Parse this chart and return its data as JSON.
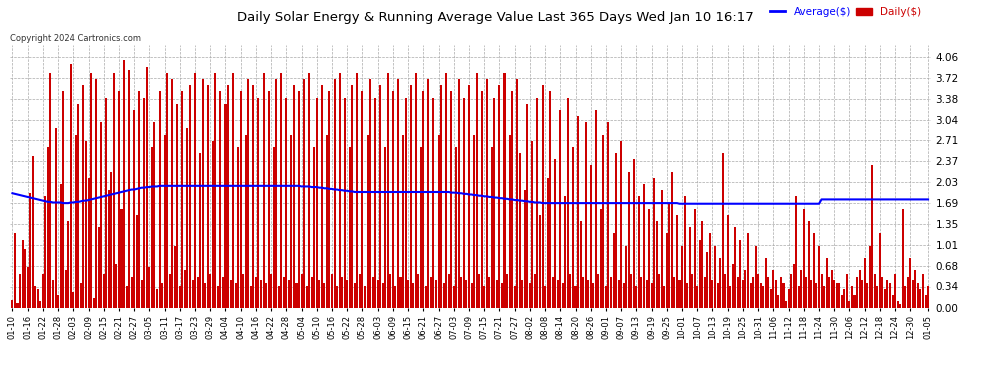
{
  "title": "Daily Solar Energy & Running Average Value Last 365 Days Wed Jan 10 16:17",
  "copyright": "Copyright 2024 Cartronics.com",
  "legend_avg": "Average($)",
  "legend_daily": "Daily($)",
  "bar_color": "#cc0000",
  "avg_line_color": "#0000ff",
  "background_color": "#ffffff",
  "plot_bg_color": "#ffffff",
  "grid_color": "#aaaaaa",
  "yticks": [
    0.0,
    0.34,
    0.68,
    1.01,
    1.35,
    1.69,
    2.03,
    2.37,
    2.71,
    3.04,
    3.38,
    3.72,
    4.06
  ],
  "ylim": [
    0.0,
    4.25
  ],
  "xtick_labels": [
    "01-10",
    "01-16",
    "01-22",
    "01-28",
    "02-03",
    "02-09",
    "02-15",
    "02-21",
    "02-27",
    "03-05",
    "03-11",
    "03-17",
    "03-23",
    "03-29",
    "04-04",
    "04-10",
    "04-16",
    "04-22",
    "04-28",
    "05-04",
    "05-10",
    "05-16",
    "05-22",
    "05-28",
    "06-03",
    "06-09",
    "06-15",
    "06-21",
    "06-27",
    "07-03",
    "07-09",
    "07-15",
    "07-21",
    "07-27",
    "08-02",
    "08-08",
    "08-14",
    "08-20",
    "08-26",
    "09-01",
    "09-07",
    "09-13",
    "09-19",
    "09-25",
    "10-01",
    "10-07",
    "10-13",
    "10-19",
    "10-25",
    "10-31",
    "11-06",
    "11-12",
    "11-18",
    "11-24",
    "11-30",
    "12-06",
    "12-12",
    "12-18",
    "12-24",
    "12-30",
    "01-05"
  ],
  "avg_line": [
    1.85,
    1.84,
    1.83,
    1.82,
    1.81,
    1.8,
    1.79,
    1.78,
    1.77,
    1.76,
    1.75,
    1.74,
    1.73,
    1.72,
    1.71,
    1.71,
    1.7,
    1.7,
    1.7,
    1.7,
    1.69,
    1.69,
    1.69,
    1.7,
    1.7,
    1.71,
    1.71,
    1.72,
    1.73,
    1.73,
    1.74,
    1.75,
    1.76,
    1.77,
    1.78,
    1.79,
    1.8,
    1.81,
    1.82,
    1.83,
    1.84,
    1.85,
    1.86,
    1.87,
    1.88,
    1.89,
    1.9,
    1.91,
    1.91,
    1.92,
    1.93,
    1.94,
    1.94,
    1.95,
    1.95,
    1.96,
    1.96,
    1.96,
    1.97,
    1.97,
    1.97,
    1.97,
    1.97,
    1.97,
    1.97,
    1.97,
    1.97,
    1.97,
    1.97,
    1.97,
    1.97,
    1.97,
    1.97,
    1.97,
    1.97,
    1.97,
    1.97,
    1.97,
    1.97,
    1.97,
    1.97,
    1.97,
    1.97,
    1.97,
    1.97,
    1.97,
    1.97,
    1.97,
    1.97,
    1.97,
    1.97,
    1.97,
    1.97,
    1.97,
    1.97,
    1.97,
    1.97,
    1.97,
    1.97,
    1.97,
    1.97,
    1.97,
    1.97,
    1.97,
    1.97,
    1.97,
    1.97,
    1.97,
    1.97,
    1.97,
    1.97,
    1.97,
    1.97,
    1.97,
    1.96,
    1.96,
    1.96,
    1.96,
    1.95,
    1.95,
    1.95,
    1.94,
    1.94,
    1.93,
    1.93,
    1.92,
    1.92,
    1.91,
    1.91,
    1.9,
    1.9,
    1.89,
    1.89,
    1.88,
    1.88,
    1.87,
    1.87,
    1.87,
    1.87,
    1.87,
    1.87,
    1.87,
    1.87,
    1.87,
    1.87,
    1.87,
    1.87,
    1.87,
    1.87,
    1.87,
    1.87,
    1.87,
    1.87,
    1.87,
    1.87,
    1.87,
    1.87,
    1.87,
    1.87,
    1.87,
    1.87,
    1.87,
    1.87,
    1.87,
    1.87,
    1.87,
    1.87,
    1.87,
    1.87,
    1.87,
    1.87,
    1.87,
    1.87,
    1.86,
    1.86,
    1.86,
    1.85,
    1.85,
    1.84,
    1.84,
    1.83,
    1.83,
    1.82,
    1.82,
    1.81,
    1.81,
    1.8,
    1.8,
    1.79,
    1.79,
    1.78,
    1.78,
    1.77,
    1.77,
    1.76,
    1.76,
    1.75,
    1.75,
    1.74,
    1.74,
    1.73,
    1.73,
    1.72,
    1.72,
    1.71,
    1.71,
    1.7,
    1.7,
    1.7,
    1.69,
    1.69,
    1.69,
    1.69,
    1.69,
    1.69,
    1.69,
    1.69,
    1.69,
    1.69,
    1.69,
    1.69,
    1.69,
    1.69,
    1.69,
    1.69,
    1.69,
    1.69,
    1.69,
    1.69,
    1.69,
    1.69,
    1.69,
    1.69,
    1.69,
    1.69,
    1.69,
    1.69,
    1.69,
    1.69,
    1.69,
    1.69,
    1.69,
    1.69,
    1.69,
    1.69,
    1.69,
    1.69,
    1.69,
    1.69,
    1.69,
    1.69,
    1.69,
    1.69,
    1.69,
    1.69,
    1.69,
    1.69,
    1.69,
    1.69,
    1.69,
    1.69,
    1.69,
    1.69,
    1.68,
    1.68,
    1.68,
    1.68,
    1.68,
    1.68,
    1.68,
    1.68,
    1.68,
    1.68,
    1.68,
    1.68,
    1.68,
    1.68,
    1.68,
    1.68,
    1.68,
    1.68,
    1.68,
    1.68,
    1.68,
    1.68,
    1.68,
    1.68,
    1.68,
    1.68,
    1.68,
    1.68,
    1.68,
    1.68,
    1.68,
    1.68,
    1.68,
    1.68,
    1.68,
    1.68,
    1.68,
    1.68,
    1.68,
    1.68,
    1.68,
    1.68,
    1.68,
    1.68,
    1.68,
    1.68,
    1.68,
    1.68,
    1.68,
    1.68,
    1.68,
    1.68,
    1.68,
    1.68,
    1.68,
    1.68,
    1.75,
    1.75,
    1.75,
    1.75,
    1.75,
    1.75,
    1.75,
    1.75,
    1.75,
    1.75,
    1.75,
    1.75,
    1.75,
    1.75,
    1.75,
    1.75,
    1.75,
    1.75,
    1.75,
    1.75,
    1.75,
    1.75,
    1.75,
    1.75,
    1.75,
    1.75,
    1.75,
    1.75,
    1.75,
    1.75,
    1.75,
    1.75,
    1.75,
    1.75,
    1.75,
    1.75,
    1.75,
    1.75,
    1.75,
    1.75,
    1.75,
    1.75,
    1.75
  ],
  "daily_values": [
    0.12,
    1.2,
    0.08,
    0.55,
    1.1,
    0.95,
    0.65,
    1.85,
    2.45,
    0.35,
    0.3,
    0.1,
    0.55,
    1.8,
    2.6,
    3.8,
    0.45,
    2.9,
    0.2,
    2.0,
    3.5,
    0.6,
    1.4,
    3.95,
    0.25,
    2.8,
    3.3,
    0.4,
    3.6,
    2.7,
    2.1,
    3.8,
    0.15,
    3.7,
    1.3,
    3.0,
    0.55,
    3.4,
    1.9,
    2.2,
    3.8,
    0.7,
    3.5,
    1.6,
    4.0,
    0.35,
    3.85,
    0.5,
    3.2,
    1.5,
    3.5,
    0.45,
    3.4,
    3.9,
    0.65,
    2.6,
    3.0,
    0.3,
    3.5,
    0.4,
    2.8,
    3.8,
    0.55,
    3.7,
    1.0,
    3.3,
    0.35,
    3.5,
    0.6,
    2.9,
    3.6,
    0.45,
    3.8,
    0.5,
    2.5,
    3.7,
    0.4,
    3.6,
    0.55,
    2.7,
    3.8,
    0.35,
    3.5,
    0.5,
    3.3,
    3.6,
    0.45,
    3.8,
    0.4,
    2.6,
    3.5,
    0.55,
    2.8,
    3.7,
    0.35,
    3.6,
    0.5,
    3.4,
    0.45,
    3.8,
    0.4,
    3.5,
    0.55,
    2.6,
    3.7,
    0.35,
    3.8,
    0.5,
    3.4,
    0.45,
    2.8,
    3.6,
    0.4,
    3.5,
    0.55,
    3.7,
    0.35,
    3.8,
    0.5,
    2.6,
    3.4,
    0.45,
    3.6,
    0.4,
    2.8,
    3.5,
    0.55,
    3.7,
    0.35,
    3.8,
    0.5,
    3.4,
    0.45,
    2.6,
    3.6,
    0.4,
    3.8,
    0.55,
    3.5,
    0.35,
    2.8,
    3.7,
    0.5,
    3.4,
    0.45,
    3.6,
    0.4,
    2.6,
    3.8,
    0.55,
    3.5,
    0.35,
    3.7,
    0.5,
    2.8,
    3.4,
    0.45,
    3.6,
    0.4,
    3.8,
    0.55,
    2.6,
    3.5,
    0.35,
    3.7,
    0.5,
    3.4,
    0.45,
    2.8,
    3.6,
    0.4,
    3.8,
    0.55,
    3.5,
    0.35,
    2.6,
    3.7,
    0.5,
    3.4,
    0.45,
    3.6,
    0.4,
    2.8,
    3.8,
    0.55,
    3.5,
    0.35,
    3.7,
    0.5,
    2.6,
    3.4,
    0.45,
    3.6,
    0.4,
    3.8,
    0.55,
    2.8,
    3.5,
    0.35,
    3.7,
    2.5,
    0.45,
    1.9,
    3.3,
    0.4,
    2.7,
    0.55,
    3.4,
    1.5,
    3.6,
    0.35,
    2.1,
    3.5,
    0.5,
    2.4,
    0.45,
    3.2,
    0.4,
    1.8,
    3.4,
    0.55,
    2.6,
    0.35,
    3.1,
    1.4,
    0.5,
    3.0,
    0.45,
    2.3,
    0.4,
    3.2,
    0.55,
    1.6,
    2.8,
    0.35,
    3.0,
    0.5,
    1.2,
    2.5,
    0.45,
    2.7,
    0.4,
    1.0,
    2.2,
    0.55,
    2.4,
    0.35,
    1.8,
    0.5,
    2.0,
    0.45,
    1.6,
    0.4,
    2.1,
    1.4,
    0.55,
    1.9,
    0.35,
    1.2,
    1.7,
    2.2,
    0.5,
    1.5,
    0.45,
    1.0,
    1.8,
    0.4,
    1.3,
    0.55,
    1.6,
    0.35,
    1.1,
    1.4,
    0.5,
    0.9,
    1.2,
    0.45,
    1.0,
    0.4,
    0.8,
    2.5,
    0.55,
    1.5,
    0.35,
    0.7,
    1.3,
    0.5,
    1.1,
    0.45,
    0.6,
    1.2,
    0.4,
    0.5,
    1.0,
    0.55,
    0.4,
    0.35,
    0.8,
    0.5,
    0.3,
    0.6,
    0.45,
    0.2,
    0.5,
    0.4,
    0.1,
    0.3,
    0.55,
    0.7,
    1.8,
    0.35,
    0.6,
    1.6,
    0.5,
    1.4,
    0.45,
    1.2,
    0.4,
    1.0,
    0.55,
    0.35,
    0.8,
    0.5,
    0.6,
    0.45,
    0.4,
    0.4,
    0.2,
    0.3,
    0.55,
    0.1,
    0.35,
    0.2,
    0.5,
    0.6,
    0.45,
    0.8,
    0.4,
    1.0,
    2.3,
    0.55,
    0.35,
    1.2,
    0.5,
    0.3,
    0.45,
    0.4,
    0.2,
    0.55,
    0.1,
    0.05,
    1.6,
    0.35,
    0.5,
    0.8,
    0.45,
    0.6,
    0.4,
    0.3,
    0.55,
    0.2,
    0.35
  ]
}
